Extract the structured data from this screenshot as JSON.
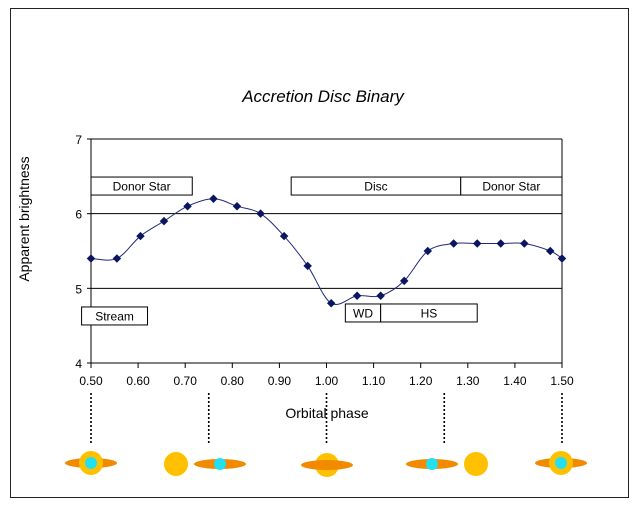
{
  "chart_data": {
    "type": "line",
    "title": "Accretion Disc Binary",
    "xlabel": "Orbital phase",
    "ylabel": "Apparent brightness",
    "xlim": [
      0.5,
      1.5
    ],
    "ylim": [
      4,
      7
    ],
    "x_ticks": [
      "0.50",
      "0.60",
      "0.70",
      "0.80",
      "0.90",
      "1.00",
      "1.10",
      "1.20",
      "1.30",
      "1.40",
      "1.50"
    ],
    "y_ticks": [
      "4",
      "5",
      "6",
      "7"
    ],
    "grid": "horizontal",
    "series": [
      {
        "name": "brightness",
        "color": "#1f2a7a",
        "x": [
          0.5,
          0.555,
          0.605,
          0.655,
          0.705,
          0.76,
          0.81,
          0.86,
          0.91,
          0.96,
          1.01,
          1.065,
          1.115,
          1.165,
          1.215,
          1.27,
          1.32,
          1.37,
          1.42,
          1.475,
          1.5
        ],
        "y": [
          5.4,
          5.4,
          5.7,
          5.9,
          6.1,
          6.2,
          6.1,
          6.0,
          5.7,
          5.3,
          4.8,
          4.9,
          4.9,
          5.1,
          5.5,
          5.6,
          5.6,
          5.6,
          5.6,
          5.5,
          5.4
        ]
      }
    ],
    "annotations": [
      {
        "text": "Donor Star",
        "x0": 0.5,
        "x1": 0.715,
        "y": 6.37
      },
      {
        "text": "Disc",
        "x0": 0.925,
        "x1": 1.285,
        "y": 6.37
      },
      {
        "text": "Donor Star",
        "x0": 1.285,
        "x1": 1.5,
        "y": 6.37
      },
      {
        "text": "Stream",
        "x0": 0.48,
        "x1": 0.62,
        "y": 4.63
      },
      {
        "text": "WD",
        "x0": 1.04,
        "x1": 1.115,
        "y": 4.67
      },
      {
        "text": "HS",
        "x0": 1.115,
        "x1": 1.32,
        "y": 4.67
      }
    ],
    "phase_markers": [
      0.5,
      0.75,
      1.0,
      1.25,
      1.5
    ]
  },
  "colors": {
    "line": "#1f2a7a",
    "disc": "#f28a00",
    "star": "#ffc000",
    "white_dwarf": "#22e0f0"
  },
  "icons": [
    "disc-icon",
    "star-icon",
    "white-dwarf-icon"
  ]
}
